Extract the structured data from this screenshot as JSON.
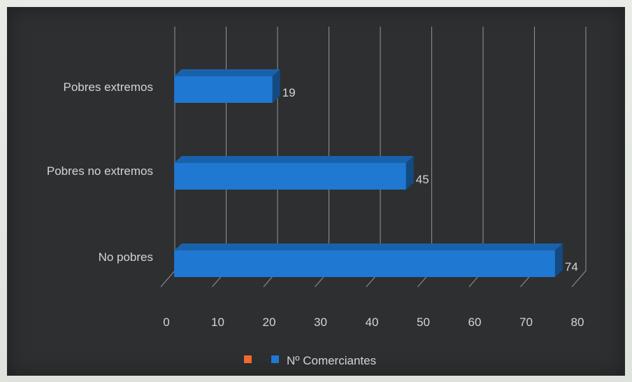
{
  "chart_data": {
    "type": "bar",
    "orientation": "horizontal",
    "style": "3d",
    "categories": [
      "Pobres extremos",
      "Pobres no extremos",
      "No pobres"
    ],
    "series": [
      {
        "name": "Nº Comerciantes",
        "values": [
          19,
          45,
          74
        ],
        "color": "#1f78d1"
      }
    ],
    "x_ticks": [
      "0",
      "10",
      "20",
      "30",
      "40",
      "50",
      "60",
      "70",
      "80"
    ],
    "xlim": [
      0,
      80
    ],
    "grid": true,
    "legend": {
      "placement": "bottom",
      "items": [
        {
          "label": "",
          "color": "#f06a2c"
        },
        {
          "label": "Nº Comerciantes",
          "color": "#1f78d1"
        }
      ]
    },
    "background": "#2d2f31",
    "text_color": "#d4d4d4"
  }
}
